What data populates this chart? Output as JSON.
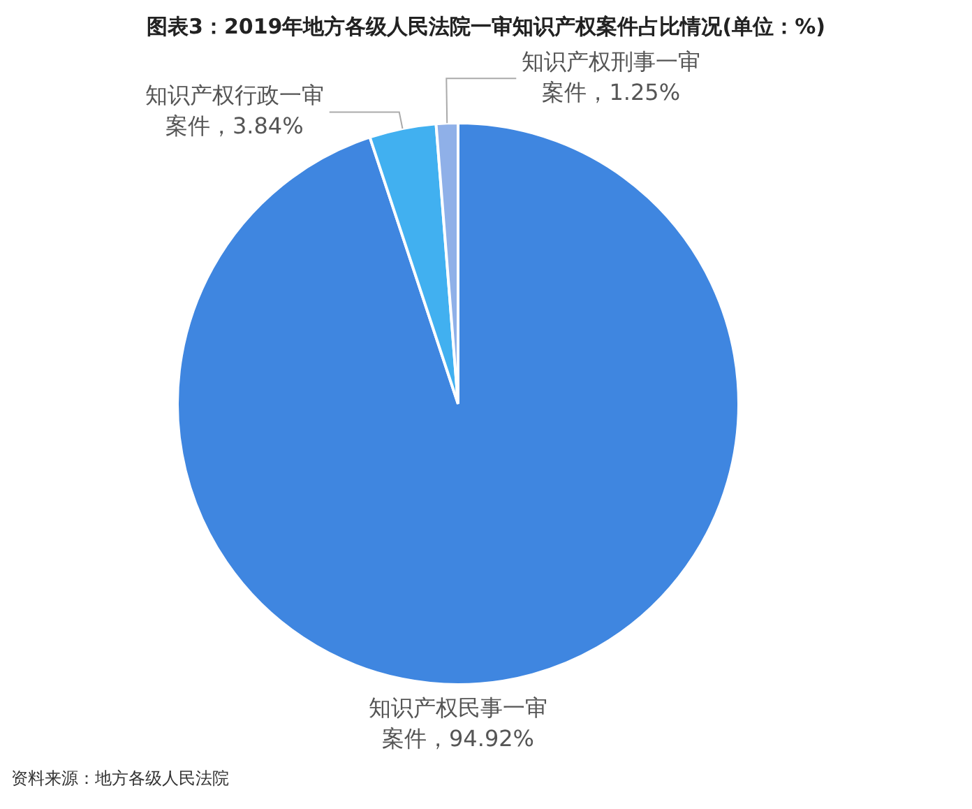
{
  "chart_data": {
    "type": "pie",
    "title": "图表3：2019年地方各级人民法院一审知识产权案件占比情况(单位：%)",
    "categories": [
      "知识产权民事一审案件",
      "知识产权行政一审案件",
      "知识产权刑事一审案件"
    ],
    "values": [
      94.92,
      3.84,
      1.25
    ],
    "colors": [
      "#3f86e0",
      "#41b0f0",
      "#8fb0e8"
    ],
    "value_labels": [
      "94.92%",
      "3.84%",
      "1.25%"
    ],
    "annotations": [
      "资料来源：地方各级人民法院"
    ],
    "legend": false
  }
}
